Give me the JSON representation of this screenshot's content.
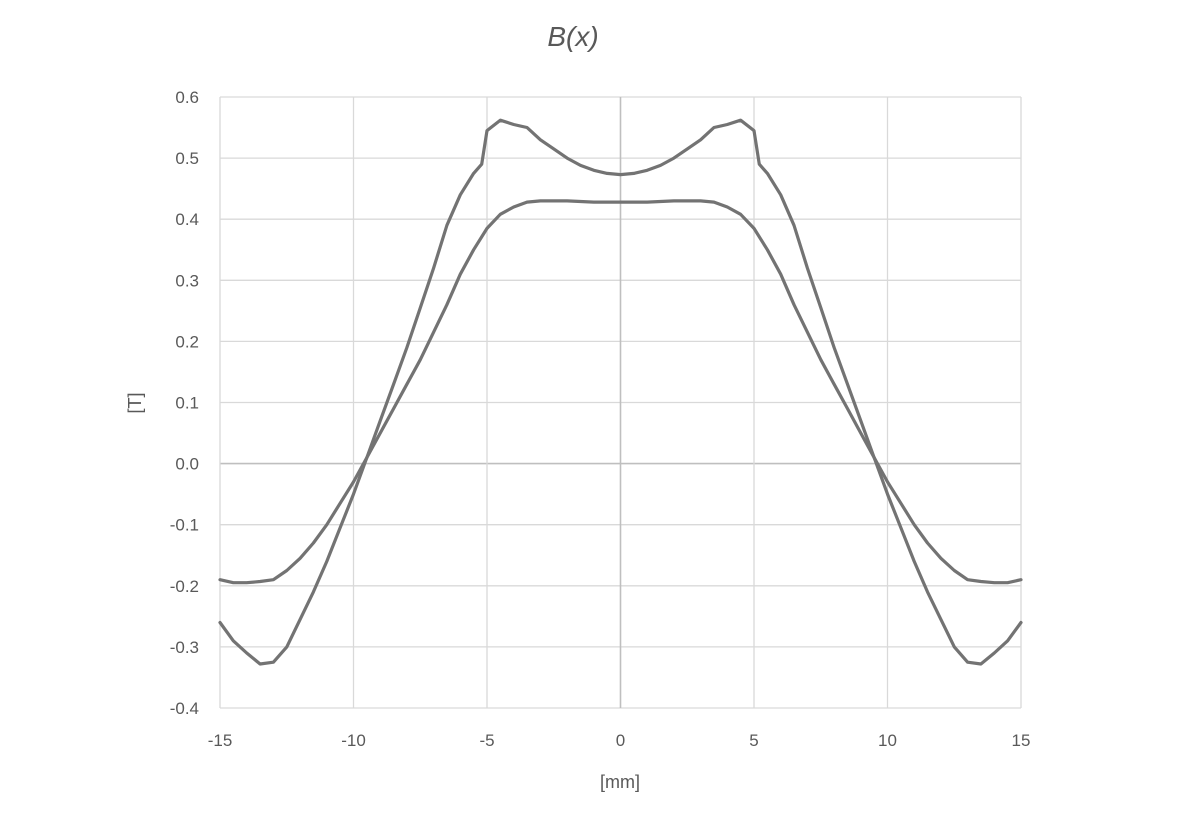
{
  "chart_data": {
    "type": "line",
    "title": "B(x)",
    "xlabel": "[mm]",
    "ylabel": "[T]",
    "xlim": [
      -15,
      15
    ],
    "ylim": [
      -0.4,
      0.6
    ],
    "x_ticks": [
      -15,
      -10,
      -5,
      0,
      5,
      10,
      15
    ],
    "x_tick_labels": [
      "-15",
      "-10",
      "-5",
      "0",
      "5",
      "10",
      "15"
    ],
    "y_ticks": [
      -0.4,
      -0.3,
      -0.2,
      -0.1,
      0.0,
      0.1,
      0.2,
      0.3,
      0.4,
      0.5,
      0.6
    ],
    "y_tick_labels": [
      "-0.4",
      "-0.3",
      "-0.2",
      "-0.1",
      "0.0",
      "0.1",
      "0.2",
      "0.3",
      "0.4",
      "0.5",
      "0.6"
    ],
    "grid": true,
    "legend": "none",
    "series_color": "#737373",
    "series": [
      {
        "x": [
          -15,
          -14.5,
          -14,
          -13.5,
          -13,
          -12.5,
          -12,
          -11.5,
          -11,
          -10.5,
          -10,
          -9.5,
          -9,
          -8.5,
          -8,
          -7.5,
          -7,
          -6.5,
          -6,
          -5.5,
          -5,
          -4.5,
          -4,
          -3.5,
          -3,
          -2.5,
          -2,
          -1.5,
          -1,
          -0.5,
          0,
          0.5,
          1,
          1.5,
          2,
          2.5,
          3,
          3.5,
          4,
          4.5,
          5,
          5.5,
          6,
          6.5,
          7,
          7.5,
          8,
          8.5,
          9,
          9.5,
          10,
          10.5,
          11,
          11.5,
          12,
          12.5,
          13,
          13.5,
          14,
          14.5,
          15
        ],
        "y": [
          -0.19,
          -0.195,
          -0.195,
          -0.193,
          -0.19,
          -0.175,
          -0.155,
          -0.13,
          -0.1,
          -0.065,
          -0.03,
          0.01,
          0.05,
          0.09,
          0.13,
          0.17,
          0.215,
          0.26,
          0.31,
          0.35,
          0.385,
          0.408,
          0.42,
          0.428,
          0.43,
          0.43,
          0.43,
          0.429,
          0.428,
          0.428,
          0.428,
          0.428,
          0.428,
          0.429,
          0.43,
          0.43,
          0.43,
          0.428,
          0.42,
          0.408,
          0.385,
          0.35,
          0.31,
          0.26,
          0.215,
          0.17,
          0.13,
          0.09,
          0.05,
          0.01,
          -0.03,
          -0.065,
          -0.1,
          -0.13,
          -0.155,
          -0.175,
          -0.19,
          -0.193,
          -0.195,
          -0.195,
          -0.19
        ]
      },
      {
        "x": [
          -15,
          -14.5,
          -14,
          -13.5,
          -13,
          -12.5,
          -12,
          -11.5,
          -11,
          -10.5,
          -10,
          -9.5,
          -9,
          -8.5,
          -8,
          -7.5,
          -7,
          -6.5,
          -6,
          -5.5,
          -5.2,
          -5,
          -4.5,
          -4,
          -3.5,
          -3,
          -2.5,
          -2,
          -1.5,
          -1,
          -0.5,
          0,
          0.5,
          1,
          1.5,
          2,
          2.5,
          3,
          3.5,
          4,
          4.5,
          5,
          5.2,
          5.5,
          6,
          6.5,
          7,
          7.5,
          8,
          8.5,
          9,
          9.5,
          10,
          10.5,
          11,
          11.5,
          12,
          12.5,
          13,
          13.5,
          14,
          14.5,
          15
        ],
        "y": [
          -0.26,
          -0.29,
          -0.31,
          -0.328,
          -0.325,
          -0.3,
          -0.255,
          -0.21,
          -0.16,
          -0.105,
          -0.05,
          0.01,
          0.07,
          0.13,
          0.19,
          0.255,
          0.32,
          0.39,
          0.44,
          0.475,
          0.49,
          0.545,
          0.562,
          0.555,
          0.55,
          0.53,
          0.515,
          0.5,
          0.488,
          0.48,
          0.475,
          0.473,
          0.475,
          0.48,
          0.488,
          0.5,
          0.515,
          0.53,
          0.55,
          0.555,
          0.562,
          0.545,
          0.49,
          0.475,
          0.44,
          0.39,
          0.32,
          0.255,
          0.19,
          0.13,
          0.07,
          0.01,
          -0.05,
          -0.105,
          -0.16,
          -0.21,
          -0.255,
          -0.3,
          -0.325,
          -0.328,
          -0.31,
          -0.29,
          -0.26
        ]
      }
    ]
  }
}
